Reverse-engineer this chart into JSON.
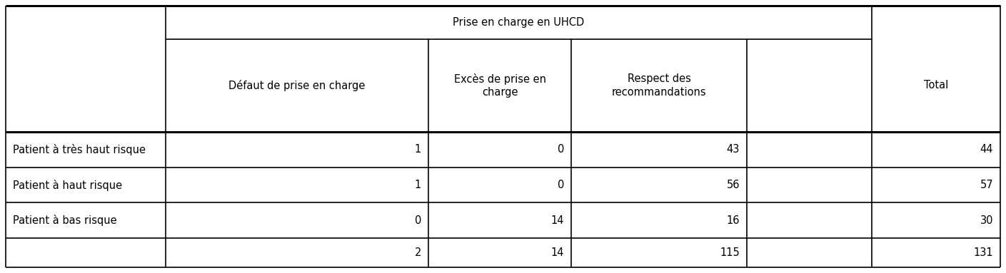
{
  "col_header_top": "Prise en charge en UHCD",
  "col_headers": [
    "Défaut de prise en charge",
    "Excès de prise en\ncharge",
    "Respect des\nrecommandations",
    "Total"
  ],
  "row_labels": [
    "Patient à très haut risque",
    "Patient à haut risque",
    "Patient à bas risque",
    ""
  ],
  "data": [
    [
      "1",
      "0",
      "43",
      "44"
    ],
    [
      "1",
      "0",
      "56",
      "57"
    ],
    [
      "0",
      "14",
      "16",
      "30"
    ],
    [
      "2",
      "14",
      "115",
      "131"
    ]
  ],
  "bg_color": "#ffffff",
  "text_color": "#000000",
  "line_color": "#000000",
  "font_size": 10.5,
  "fig_width": 14.09,
  "fig_height": 3.83,
  "dpi": 100
}
